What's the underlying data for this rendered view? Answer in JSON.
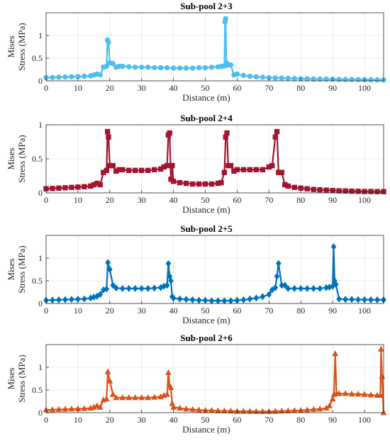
{
  "chart_data": [
    {
      "type": "line",
      "title": "Sub-pool 2+3",
      "xlabel": "Distance (m)",
      "ylabel_lines": [
        "Mises",
        "Stress (MPa)"
      ],
      "xlim": [
        0,
        106
      ],
      "ylim": [
        0,
        1.5
      ],
      "xticks": [
        0,
        10,
        20,
        30,
        40,
        50,
        60,
        70,
        80,
        90,
        100
      ],
      "yticks": [
        0,
        0.5,
        1
      ],
      "ytick_labels": [
        "0",
        "0.5",
        "1"
      ],
      "grid": true,
      "marker": "circle",
      "color": "#4DBEEE",
      "series": [
        {
          "x": [
            0,
            2,
            4,
            6,
            8,
            10,
            12,
            14,
            15,
            16,
            17,
            18,
            19,
            19.3,
            19.6,
            20,
            21,
            22,
            23,
            24,
            26,
            28,
            30,
            32,
            34,
            36,
            38,
            40,
            42,
            44,
            46,
            48,
            50,
            52,
            54,
            55,
            56,
            56.2,
            56.4,
            56.6,
            57,
            58,
            59,
            60,
            62,
            64,
            66,
            68,
            70,
            72,
            74,
            76,
            78,
            80,
            82,
            84,
            86,
            88,
            90,
            92,
            94,
            96,
            98,
            100,
            102,
            104,
            106
          ],
          "y": [
            0.07,
            0.075,
            0.08,
            0.085,
            0.09,
            0.095,
            0.1,
            0.11,
            0.13,
            0.15,
            0.13,
            0.3,
            0.32,
            0.9,
            0.85,
            0.4,
            0.38,
            0.3,
            0.32,
            0.32,
            0.31,
            0.3,
            0.3,
            0.3,
            0.29,
            0.29,
            0.29,
            0.28,
            0.28,
            0.28,
            0.28,
            0.29,
            0.29,
            0.3,
            0.31,
            0.32,
            0.33,
            1.3,
            1.37,
            0.4,
            0.35,
            0.35,
            0.13,
            0.15,
            0.12,
            0.1,
            0.09,
            0.08,
            0.07,
            0.065,
            0.06,
            0.055,
            0.05,
            0.048,
            0.045,
            0.04,
            0.04,
            0.038,
            0.035,
            0.033,
            0.03,
            0.03,
            0.028,
            0.025,
            0.025,
            0.022,
            0.02
          ]
        }
      ]
    },
    {
      "type": "line",
      "title": "Sub-pool 2+4",
      "xlabel": "Distance (m)",
      "ylabel_lines": [
        "Mises",
        "Stress (MPa)"
      ],
      "xlim": [
        0,
        106
      ],
      "ylim": [
        0,
        1
      ],
      "xticks": [
        0,
        10,
        20,
        30,
        40,
        50,
        60,
        70,
        80,
        90,
        100
      ],
      "yticks": [
        0,
        0.5,
        1
      ],
      "ytick_labels": [
        "0",
        "0.5",
        "1"
      ],
      "grid": true,
      "marker": "square",
      "color": "#A2142F",
      "series": [
        {
          "x": [
            0,
            2,
            4,
            6,
            8,
            10,
            12,
            14,
            15,
            16,
            17,
            18,
            19,
            19.3,
            19.6,
            20,
            21,
            22,
            23,
            24,
            26,
            28,
            30,
            32,
            34,
            36,
            37,
            38,
            38.4,
            38.8,
            39.2,
            39.6,
            40,
            42,
            44,
            46,
            48,
            50,
            52,
            54,
            55,
            56,
            56.4,
            56.8,
            57.2,
            58,
            59,
            60,
            62,
            64,
            66,
            68,
            70,
            71,
            72,
            72.5,
            73,
            74,
            75,
            76,
            78,
            80,
            82,
            84,
            86,
            88,
            90,
            92,
            94,
            96,
            98,
            100,
            102,
            104,
            106
          ],
          "y": [
            0.06,
            0.065,
            0.07,
            0.075,
            0.08,
            0.085,
            0.09,
            0.1,
            0.12,
            0.14,
            0.12,
            0.3,
            0.33,
            0.9,
            0.82,
            0.4,
            0.4,
            0.32,
            0.34,
            0.34,
            0.33,
            0.33,
            0.33,
            0.33,
            0.34,
            0.35,
            0.38,
            0.4,
            0.85,
            0.88,
            0.2,
            0.4,
            0.17,
            0.15,
            0.14,
            0.13,
            0.13,
            0.13,
            0.13,
            0.14,
            0.15,
            0.3,
            0.82,
            0.88,
            0.4,
            0.4,
            0.32,
            0.34,
            0.34,
            0.34,
            0.34,
            0.34,
            0.38,
            0.4,
            0.82,
            0.9,
            0.3,
            0.3,
            0.12,
            0.1,
            0.08,
            0.07,
            0.06,
            0.05,
            0.045,
            0.04,
            0.035,
            0.03,
            0.028,
            0.025,
            0.023,
            0.02,
            0.02,
            0.018,
            0.018
          ]
        }
      ]
    },
    {
      "type": "line",
      "title": "Sub-pool 2+5",
      "xlabel": "Distance (m)",
      "ylabel_lines": [
        "Mises",
        "Stress (MPa)"
      ],
      "xlim": [
        0,
        106
      ],
      "ylim": [
        0,
        1.5
      ],
      "xticks": [
        0,
        10,
        20,
        30,
        40,
        50,
        60,
        70,
        80,
        90,
        100
      ],
      "yticks": [
        0,
        0.5,
        1
      ],
      "ytick_labels": [
        "0",
        "0.5",
        "1"
      ],
      "grid": true,
      "marker": "diamond",
      "color": "#0072BD",
      "series": [
        {
          "x": [
            0,
            2,
            4,
            6,
            8,
            10,
            12,
            14,
            15,
            16,
            17,
            18,
            19,
            19.4,
            20,
            21,
            22,
            24,
            26,
            28,
            30,
            32,
            34,
            36,
            37,
            38,
            38.4,
            38.8,
            39.2,
            39.6,
            40,
            42,
            44,
            46,
            48,
            50,
            52,
            54,
            56,
            58,
            60,
            62,
            64,
            66,
            68,
            70,
            71,
            72,
            72.5,
            73,
            74,
            75,
            76,
            78,
            80,
            82,
            84,
            86,
            88,
            89,
            90,
            90.3,
            90.6,
            91,
            92,
            94,
            96,
            98,
            100,
            102,
            104,
            106
          ],
          "y": [
            0.07,
            0.075,
            0.08,
            0.085,
            0.09,
            0.095,
            0.1,
            0.12,
            0.14,
            0.16,
            0.2,
            0.3,
            0.32,
            0.9,
            0.75,
            0.4,
            0.34,
            0.33,
            0.33,
            0.33,
            0.33,
            0.33,
            0.34,
            0.35,
            0.38,
            0.4,
            0.88,
            0.6,
            0.5,
            0.15,
            0.12,
            0.1,
            0.09,
            0.08,
            0.07,
            0.07,
            0.06,
            0.06,
            0.06,
            0.06,
            0.07,
            0.08,
            0.1,
            0.12,
            0.15,
            0.2,
            0.3,
            0.35,
            0.6,
            0.88,
            0.4,
            0.4,
            0.33,
            0.33,
            0.33,
            0.33,
            0.33,
            0.33,
            0.35,
            0.36,
            0.38,
            1.25,
            0.5,
            0.42,
            0.1,
            0.09,
            0.09,
            0.085,
            0.085,
            0.08,
            0.08,
            0.08
          ]
        }
      ]
    },
    {
      "type": "line",
      "title": "Sub-pool 2+6",
      "xlabel": "Distance (m)",
      "ylabel_lines": [
        "Mises",
        "Stress (MPa)"
      ],
      "xlim": [
        0,
        106
      ],
      "ylim": [
        0,
        1.5
      ],
      "xticks": [
        0,
        10,
        20,
        30,
        40,
        50,
        60,
        70,
        80,
        90,
        100
      ],
      "yticks": [
        0,
        0.5,
        1
      ],
      "ytick_labels": [
        "0",
        "0.5",
        "1"
      ],
      "grid": true,
      "marker": "triangle",
      "color": "#D95319",
      "series": [
        {
          "x": [
            0,
            2,
            4,
            6,
            8,
            10,
            12,
            14,
            15,
            16,
            17,
            18,
            19,
            19.4,
            20,
            21,
            22,
            24,
            26,
            28,
            30,
            32,
            34,
            36,
            37,
            38,
            38.4,
            38.8,
            39.2,
            39.6,
            40,
            42,
            44,
            46,
            48,
            50,
            52,
            54,
            56,
            58,
            60,
            62,
            64,
            66,
            68,
            70,
            72,
            74,
            76,
            78,
            80,
            82,
            84,
            86,
            88,
            89,
            90,
            90.4,
            90.8,
            91.2,
            92,
            94,
            96,
            98,
            100,
            102,
            104,
            105,
            105.2,
            105.5,
            106
          ],
          "y": [
            0.06,
            0.065,
            0.07,
            0.075,
            0.08,
            0.085,
            0.09,
            0.1,
            0.12,
            0.15,
            0.12,
            0.28,
            0.3,
            0.9,
            0.7,
            0.4,
            0.33,
            0.33,
            0.33,
            0.33,
            0.33,
            0.33,
            0.34,
            0.35,
            0.38,
            0.4,
            0.88,
            0.6,
            0.55,
            0.2,
            0.12,
            0.1,
            0.08,
            0.07,
            0.06,
            0.05,
            0.05,
            0.04,
            0.04,
            0.035,
            0.03,
            0.03,
            0.03,
            0.025,
            0.025,
            0.025,
            0.03,
            0.035,
            0.04,
            0.045,
            0.05,
            0.06,
            0.07,
            0.08,
            0.1,
            0.15,
            0.3,
            0.4,
            1.3,
            0.42,
            0.42,
            0.42,
            0.41,
            0.41,
            0.4,
            0.39,
            0.38,
            0.38,
            1.4,
            0.8,
            0.0
          ]
        }
      ]
    }
  ]
}
